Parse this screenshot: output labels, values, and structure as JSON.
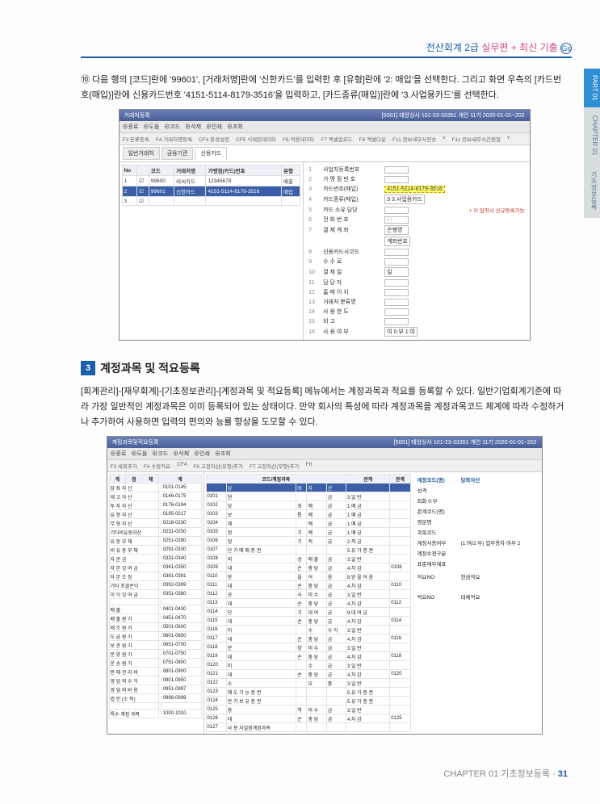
{
  "header": {
    "left": "전산회계 2급",
    "mid": "실무편",
    "plus": "+",
    "right": "최신 기출"
  },
  "sideTab": {
    "part": "PART 01",
    "chapter": "CHAPTER 01",
    "sub": "기초정보등록"
  },
  "para1": {
    "circle": "⑩",
    "text": "다음 행의 [코드]란에 '99601', [거래처명]란에 '신한카드'를 입력한 후 [유형]란에 '2: 매입'을 선택한다. 그리고 화면 우측의 [카드번호(매입)]란에 신용카드번호 '4151-5114-8179-3516'을 입력하고, [카드종류(매입)]란에 '3.사업용카드'를 선택한다."
  },
  "shot1": {
    "title": "거래처등록",
    "rtitle": "[5001] 태양상사 101-23-33351 개인 11기 2020-01-01~202",
    "toolbar": [
      "종료",
      "도움",
      "코드",
      "삭제",
      "인쇄",
      "조회"
    ],
    "sub": [
      "F3 본류등록",
      "F4 거래처명등록",
      "CF4 환경설정",
      "CF5 식제된데이타",
      "F6 적용데이타",
      "F7 엑셀업로드",
      "F8 엑셀다운",
      "F11 전보세무사전송",
      "v",
      "F11 전보세무사간편철",
      "v"
    ],
    "tabs": [
      "일반거래처",
      "금융기관",
      "신용카드"
    ],
    "cols": [
      "No",
      "",
      "코드",
      "거래처명",
      "가맹점(카드)번호",
      "유형"
    ],
    "rows": [
      [
        "1",
        "",
        "99600",
        "비씨카드",
        "12345678",
        "매출"
      ],
      [
        "2",
        "",
        "99601",
        "신한카드",
        "4151-5114-8179-3516",
        "매입"
      ],
      [
        "3",
        "",
        "",
        "",
        "",
        ""
      ]
    ],
    "fields": [
      {
        "n": "1",
        "l": "사업자등록번호",
        "v": ""
      },
      {
        "n": "2",
        "l": "가 맹 점 번 호",
        "v": ""
      },
      {
        "n": "3",
        "l": "카드번호(매입)",
        "v": "4151-5114-8179-3516",
        "hl": true
      },
      {
        "n": "4",
        "l": "카드종류(매입)",
        "v": "3 3.사업용카드"
      },
      {
        "n": "5",
        "l": "카드 소유 담당",
        "v": ""
      },
      {
        "n": "6",
        "l": "전 화 번 호",
        "v": "    -    -"
      },
      {
        "n": "7",
        "l": "결 제 계 좌",
        "v": "은행명"
      },
      {
        "n": "",
        "l": "",
        "v": "계좌번호"
      },
      {
        "n": "8",
        "l": "신용카드사코드",
        "v": ""
      },
      {
        "n": "9",
        "l": "수 수 료",
        "v": ""
      },
      {
        "n": "10",
        "l": "결 제 일",
        "v": "일"
      },
      {
        "n": "11",
        "l": "담 당 자",
        "v": ""
      },
      {
        "n": "12",
        "l": "홈 페 이 지",
        "v": ""
      },
      {
        "n": "13",
        "l": "거래처 분류명",
        "v": ""
      },
      {
        "n": "14",
        "l": "사 용 한 도",
        "v": ""
      },
      {
        "n": "15",
        "l": "비 고",
        "v": ""
      },
      {
        "n": "16",
        "l": "사 용 여 부",
        "v": "여 0:부 1:여"
      }
    ],
    "note": "+ 키 입력시 신규등록가능"
  },
  "section": {
    "num": "3",
    "title": "계정과목 및 적요등록"
  },
  "para2": "[회계관리]-[재무회계]-[기초정보관리]-[계정과목 및 적요등록] 메뉴에서는 계정과목과 적요를 등록할 수 있다. 일반기업회계기준에 따라 가장 일반적인 계정과목은 이미 등록되어 있는 상태이다. 만약 회사의 특성에 따라 계정과목을 계정과목코드 체계에 따라 수정하거나 추가하여 사용하면 입력의 편의와 능률 향상을 도모할 수 있다.",
  "shot2": {
    "title": "계정과목및적요등록",
    "rtitle": "[5001] 태양상사 101-23-33351 개인 11기 2020-01-01~202",
    "toolbar": [
      "종료",
      "도움",
      "코드",
      "삭제",
      "인쇄",
      "조회"
    ],
    "sub": [
      "F3 세목추가",
      "F4 수정적요",
      "CF4",
      "F6 고정자산(유형)추가",
      "F7 고정자산(무형)추가",
      "F8"
    ],
    "leftHead": [
      "계",
      "정",
      "체",
      "계"
    ],
    "leftRows": [
      [
        "당 좌 자 산",
        "0101-0145"
      ],
      [
        "재 고 자 산",
        "0146-0175"
      ],
      [
        "투 자 자 산",
        "0176-0194"
      ],
      [
        "유 형 자 산",
        "0195-0217"
      ],
      [
        "무 형 자 산",
        "0218-0230"
      ],
      [
        "기타비유동자산",
        "0231-0250"
      ],
      [
        "유 동 부 채",
        "0251-0290"
      ],
      [
        "비 유 동 부 채",
        "0291-0330"
      ],
      [
        "자 본 금",
        "0331-0340"
      ],
      [
        "자 본 잉 여 금",
        "0341-0350"
      ],
      [
        "자 본 조 정",
        "0381-0391"
      ],
      [
        "기타 포괄손익",
        "0392-0399"
      ],
      [
        "이 익 잉 여 금",
        "0351-0380"
      ],
      [
        "",
        "",
        ""
      ],
      [
        "매 출",
        "0401-0430"
      ],
      [
        "매 출 원 가",
        "0451-0470"
      ],
      [
        "제 조 원 가",
        "0501-0600"
      ],
      [
        "도 급 원 가",
        "0601-0650"
      ],
      [
        "보 관 원 가",
        "0651-0700"
      ],
      [
        "분 양 원 가",
        "0701-0750"
      ],
      [
        "운 송 원 가",
        "0751-0800"
      ],
      [
        "판 매 관 리 비",
        "0801-0900"
      ],
      [
        "영 업 외 수 익",
        "0901-0950"
      ],
      [
        "영 업 외 비 용",
        "0951-0997"
      ],
      [
        "법 인 (소 득)",
        "0998-0999"
      ],
      [
        "",
        "",
        ""
      ],
      [
        "특수 계정 과목",
        "1000-1010"
      ]
    ],
    "midHead": [
      "코드/계정과목",
      "",
      "",
      "",
      "성격",
      "관계"
    ],
    "midRows": [
      [
        "",
        "당",
        "좌",
        "자",
        "산",
        "",
        ""
      ],
      [
        "0101",
        "현",
        "",
        "",
        "금",
        "3.일  반",
        ""
      ],
      [
        "0102",
        "당",
        "좌",
        "예",
        "금",
        "1.예  금",
        ""
      ],
      [
        "0103",
        "보",
        "통",
        "예",
        "금",
        "1.예  금",
        ""
      ],
      [
        "0104",
        "제",
        "",
        "예",
        "금",
        "1.예  금",
        ""
      ],
      [
        "0105",
        "정",
        "기",
        "예",
        "금",
        "1.예  금",
        ""
      ],
      [
        "0106",
        "정",
        "기",
        "적",
        "금",
        "2.적  금",
        ""
      ],
      [
        "0107",
        "단 기 매 매 증 권",
        "",
        "",
        "",
        "5.유 가 증 권",
        ""
      ],
      [
        "0108",
        "외",
        "상",
        "매 출",
        "금",
        "3.일  반",
        ""
      ],
      [
        "0109",
        "대",
        "손",
        "충 당",
        "금",
        "4.차  감",
        "0108"
      ],
      [
        "0110",
        "받",
        "을",
        "어",
        "음",
        "8.받 을 어 음",
        ""
      ],
      [
        "0111",
        "대",
        "손",
        "충 당",
        "금",
        "4.차  감",
        "0110"
      ],
      [
        "0112",
        "공",
        "사",
        "미 수",
        "금",
        "3.일  반",
        ""
      ],
      [
        "0113",
        "대",
        "손",
        "충 당",
        "금",
        "4.차  감",
        "0112"
      ],
      [
        "0114",
        "단",
        "기",
        "대 여",
        "금",
        "9.대 여 금",
        ""
      ],
      [
        "0115",
        "대",
        "손",
        "충 당",
        "금",
        "4.차  감",
        "0114"
      ],
      [
        "0116",
        "미",
        "",
        "수",
        "수  익",
        "3.일  반",
        ""
      ],
      [
        "0117",
        "대",
        "손",
        "충 당",
        "금",
        "4.차  감",
        "0116"
      ],
      [
        "0118",
        "분",
        "양",
        "미 수",
        "금",
        "3.일  반",
        ""
      ],
      [
        "0119",
        "대",
        "손",
        "충 당",
        "금",
        "4.차  감",
        "0118"
      ],
      [
        "0120",
        "미",
        "",
        "수",
        "금",
        "3.일  반",
        ""
      ],
      [
        "0121",
        "대",
        "손",
        "충 당",
        "금",
        "4.차  감",
        "0120"
      ],
      [
        "0122",
        "소",
        "",
        "모",
        "품",
        "3.일  반",
        ""
      ],
      [
        "0123",
        "매 도 가 능 증 권",
        "",
        "",
        "",
        "5.유 가 증 권",
        ""
      ],
      [
        "0124",
        "만 기 보 유 증 권",
        "",
        "",
        "",
        "5.유 가 증 권",
        ""
      ],
      [
        "0125",
        "용",
        "역",
        "미 수",
        "금",
        "3.일  반",
        ""
      ],
      [
        "0126",
        "대",
        "손",
        "충 당",
        "금",
        "4.차  감",
        "0125"
      ],
      [
        "0127",
        "사 용 자설정계정과목",
        "",
        "",
        "",
        "",
        ""
      ]
    ],
    "details": {
      "head": "계정코드(명)",
      "rhead": "당좌자산",
      "rows": [
        [
          "성격",
          ""
        ],
        [
          "외화 0:부"
        ],
        [
          "관계코드(명)",
          ""
        ],
        [
          "영문명",
          ""
        ],
        [
          "과목코드",
          ""
        ],
        [
          "계정사용여부",
          "(1:여/2:부) 업무용차 여부  2"
        ],
        [
          "계정수정구분",
          ""
        ],
        [
          "표준재무제표",
          ""
        ],
        [
          "",
          ""
        ],
        [
          "적요NO",
          "현금적요"
        ],
        [
          "",
          ""
        ],
        [
          "",
          ""
        ],
        [
          "",
          ""
        ],
        [
          "",
          ""
        ],
        [
          "적요NO",
          "대체적요"
        ]
      ]
    }
  },
  "footer": {
    "chap": "CHAPTER 01 기초정보등록 ·",
    "page": "31"
  }
}
